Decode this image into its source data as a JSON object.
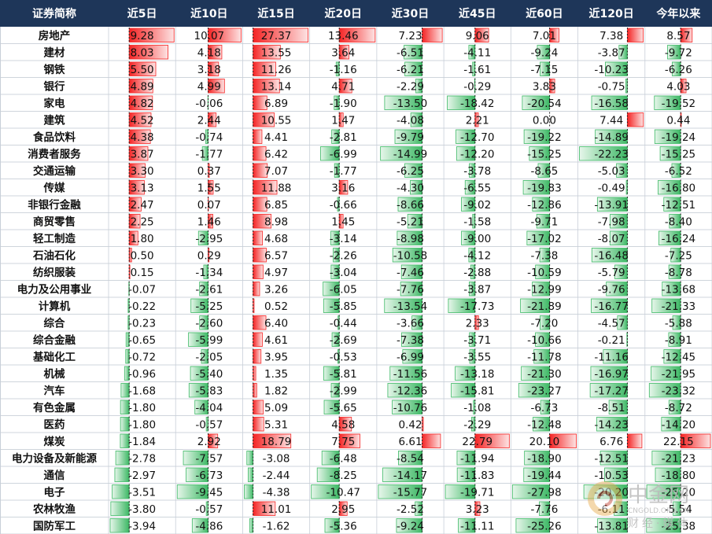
{
  "chart_data": {
    "type": "table",
    "columns": [
      "证券简称",
      "近5日",
      "近10日",
      "近15日",
      "近20日",
      "近30日",
      "近45日",
      "近60日",
      "近120日",
      "今年以来"
    ],
    "value_columns": [
      "近5日",
      "近10日",
      "近15日",
      "近20日",
      "近30日",
      "近45日",
      "近60日",
      "近120日",
      "今年以来"
    ],
    "rows": [
      {
        "name": "房地产",
        "values": [
          "9.28",
          "10.07",
          "27.37",
          "13.46",
          "7.23",
          "9.06",
          "7.01",
          "7.38",
          "8.57"
        ]
      },
      {
        "name": "建材",
        "values": [
          "8.03",
          "4.18",
          "13.55",
          "3.64",
          "-6.51",
          "-4.11",
          "-9.24",
          "-3.87",
          "-9.72"
        ]
      },
      {
        "name": "钢铁",
        "values": [
          "5.50",
          "3.18",
          "11.26",
          "-1.16",
          "-6.21",
          "-1.61",
          "-7.15",
          "-10.23",
          "-6.26"
        ]
      },
      {
        "name": "银行",
        "values": [
          "4.89",
          "4.99",
          "13.14",
          "4.71",
          "-2.29",
          "-0.29",
          "3.83",
          "-0.75",
          "4.03"
        ]
      },
      {
        "name": "家电",
        "values": [
          "4.82",
          "-0.06",
          "6.89",
          "-1.90",
          "-13.50",
          "-18.42",
          "-20.54",
          "-16.58",
          "-19.52"
        ]
      },
      {
        "name": "建筑",
        "values": [
          "4.52",
          "2.44",
          "10.55",
          "1.47",
          "-4.08",
          "2.21",
          "0.00",
          "7.44",
          "0.44"
        ]
      },
      {
        "name": "食品饮料",
        "values": [
          "4.38",
          "-0.74",
          "4.41",
          "-2.81",
          "-9.79",
          "-12.70",
          "-19.22",
          "-14.89",
          "-19.24"
        ]
      },
      {
        "name": "消费者服务",
        "values": [
          "3.87",
          "-1.77",
          "6.42",
          "-6.99",
          "-14.99",
          "-12.20",
          "-15.25",
          "-22.23",
          "-15.25"
        ]
      },
      {
        "name": "交通运输",
        "values": [
          "3.30",
          "0.37",
          "7.07",
          "-1.77",
          "-6.25",
          "-3.78",
          "-8.65",
          "-5.03",
          "-6.52"
        ]
      },
      {
        "name": "传媒",
        "values": [
          "3.13",
          "1.55",
          "11.88",
          "3.16",
          "-4.30",
          "-6.55",
          "-19.83",
          "-0.49",
          "-16.80"
        ]
      },
      {
        "name": "非银行金融",
        "values": [
          "2.47",
          "0.07",
          "6.85",
          "-0.66",
          "-8.66",
          "-9.02",
          "-12.86",
          "-13.91",
          "-12.51"
        ]
      },
      {
        "name": "商贸零售",
        "values": [
          "2.25",
          "1.46",
          "8.98",
          "1.45",
          "-5.21",
          "-1.58",
          "-9.71",
          "-7.98",
          "-8.40"
        ]
      },
      {
        "name": "轻工制造",
        "values": [
          "1.80",
          "-2.95",
          "4.68",
          "-3.14",
          "-8.98",
          "-9.00",
          "-17.02",
          "-8.07",
          "-16.24"
        ]
      },
      {
        "name": "石油石化",
        "values": [
          "0.50",
          "0.29",
          "6.57",
          "-2.26",
          "-10.58",
          "-4.12",
          "-7.38",
          "-16.48",
          "-7.25"
        ]
      },
      {
        "name": "纺织服装",
        "values": [
          "0.15",
          "-1.34",
          "4.97",
          "-3.04",
          "-7.46",
          "-2.88",
          "-10.59",
          "-5.79",
          "-8.78"
        ]
      },
      {
        "name": "电力及公用事业",
        "values": [
          "-0.07",
          "-2.61",
          "3.26",
          "-6.05",
          "-7.76",
          "-3.87",
          "-12.99",
          "-9.76",
          "-13.68"
        ]
      },
      {
        "name": "计算机",
        "values": [
          "-0.22",
          "-5.25",
          "0.52",
          "-5.85",
          "-13.54",
          "-17.73",
          "-21.89",
          "-16.77",
          "-21.33"
        ]
      },
      {
        "name": "综合",
        "values": [
          "-0.23",
          "-2.60",
          "6.40",
          "-0.44",
          "-3.66",
          "2.33",
          "-7.20",
          "-4.57",
          "-5.88"
        ]
      },
      {
        "name": "综合金融",
        "values": [
          "-0.65",
          "-5.99",
          "4.61",
          "-2.69",
          "-7.38",
          "-3.71",
          "-10.66",
          "-0.21",
          "-8.91"
        ]
      },
      {
        "name": "基础化工",
        "values": [
          "-0.72",
          "-2.05",
          "3.95",
          "-0.53",
          "-6.99",
          "-3.55",
          "-11.78",
          "-11.16",
          "-12.45"
        ]
      },
      {
        "name": "机械",
        "values": [
          "-0.96",
          "-5.40",
          "1.35",
          "-5.81",
          "-11.56",
          "-13.18",
          "-21.30",
          "-16.97",
          "-21.95"
        ]
      },
      {
        "name": "汽车",
        "values": [
          "-1.68",
          "-5.83",
          "1.82",
          "-2.99",
          "-12.36",
          "-15.81",
          "-23.27",
          "-17.27",
          "-23.32"
        ]
      },
      {
        "name": "有色金属",
        "values": [
          "-1.80",
          "-4.04",
          "5.09",
          "-5.65",
          "-10.76",
          "-1.08",
          "-6.73",
          "-8.51",
          "-8.72"
        ]
      },
      {
        "name": "医药",
        "values": [
          "-1.80",
          "-0.57",
          "5.31",
          "4.58",
          "0.42",
          "-2.29",
          "-12.48",
          "-14.23",
          "-14.20"
        ]
      },
      {
        "name": "煤炭",
        "values": [
          "-1.84",
          "2.92",
          "18.79",
          "7.75",
          "6.61",
          "22.79",
          "20.10",
          "6.76",
          "22.15"
        ]
      },
      {
        "name": "电力设备及新能源",
        "values": [
          "-2.78",
          "-7.57",
          "-3.08",
          "-6.48",
          "-8.54",
          "-11.94",
          "-18.90",
          "-12.51",
          "-21.23"
        ]
      },
      {
        "name": "通信",
        "values": [
          "-2.97",
          "-6.73",
          "-2.44",
          "-8.25",
          "-14.17",
          "-11.83",
          "-19.44",
          "-10.53",
          "-18.80"
        ]
      },
      {
        "name": "电子",
        "values": [
          "-3.51",
          "-9.45",
          "-4.38",
          "-10.47",
          "-15.77",
          "-19.71",
          "-27.98",
          "-20.20",
          "-25.20"
        ]
      },
      {
        "name": "农林牧渔",
        "values": [
          "-3.80",
          "-0.57",
          "11.01",
          "2.95",
          "-2.52",
          "3.23",
          "-7.76",
          "-6.11",
          "-5.54"
        ]
      },
      {
        "name": "国防军工",
        "values": [
          "-3.94",
          "-4.86",
          "-1.62",
          "-5.36",
          "-9.24",
          "-11.11",
          "-25.26",
          "-13.81",
          "-25.38"
        ]
      }
    ],
    "positive_color": "#f42424",
    "negative_color": "#3cb864",
    "header_color": "#1e3659"
  },
  "watermark": {
    "logo_cn": "中金网",
    "url": "CNGOLD.ORG.CN",
    "tagline": "财经·媒体"
  }
}
